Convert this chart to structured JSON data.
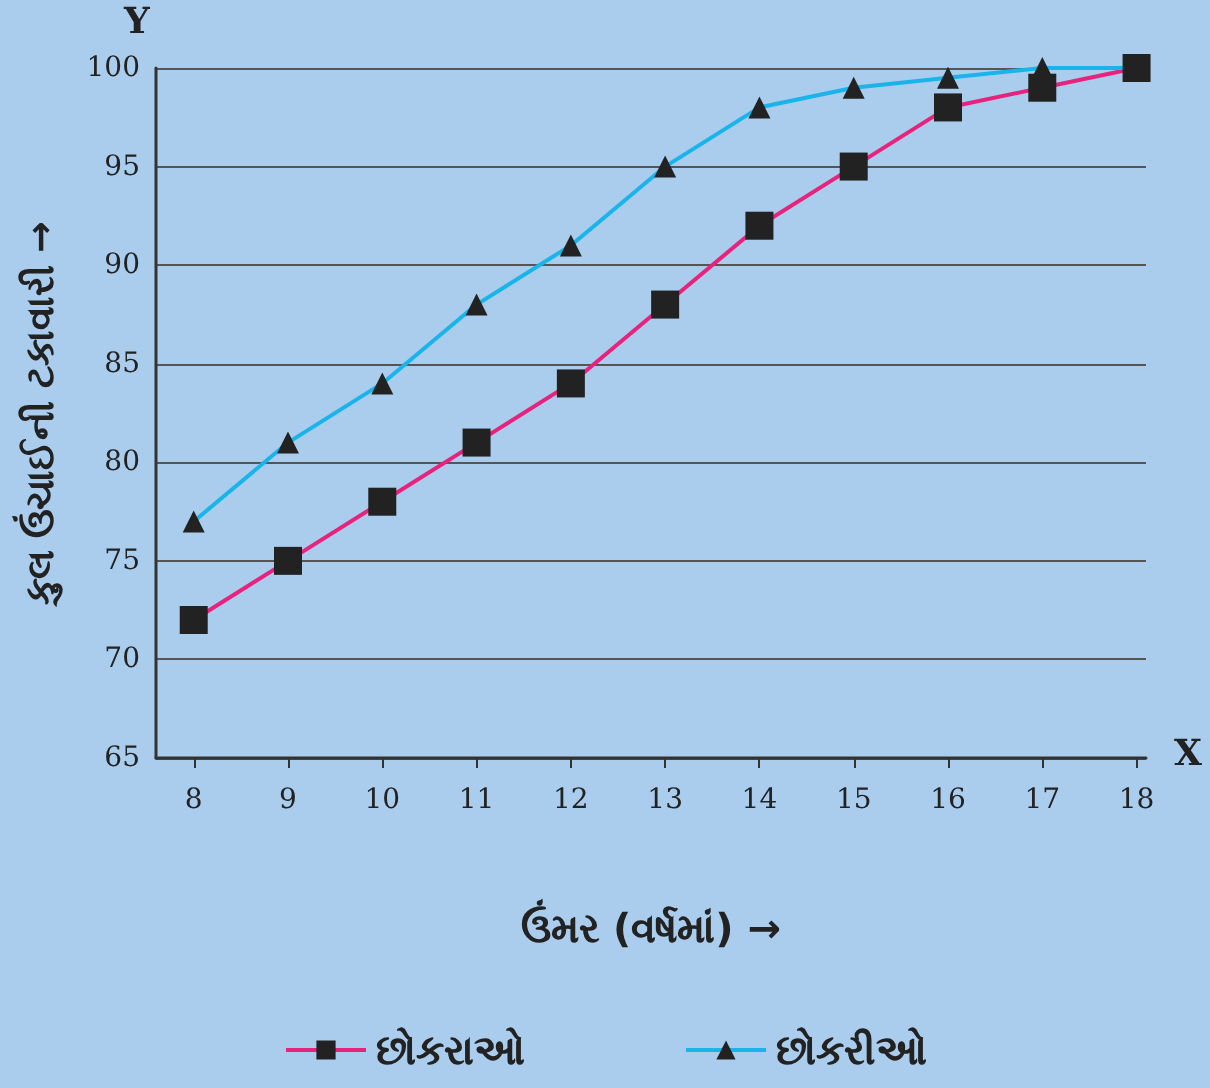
{
  "chart_data": {
    "type": "line",
    "xlabel": "ઉંમર (વર્ષમાં) →",
    "ylabel": "કુલ ઉંચાઈની ટકાવારી →",
    "annotations": [
      "Y",
      "X"
    ],
    "x": [
      8,
      9,
      10,
      11,
      12,
      13,
      14,
      15,
      16,
      17,
      18
    ],
    "series": [
      {
        "name": "છોકરાઓ",
        "color": "#e8237d",
        "marker": "square",
        "values": [
          72,
          75,
          78,
          81,
          84,
          88,
          92,
          95,
          98,
          99,
          100
        ]
      },
      {
        "name": "છોકરીઓ",
        "color": "#1ab4ea",
        "marker": "triangle",
        "values": [
          77,
          81,
          84,
          88,
          91,
          95,
          98,
          99,
          99.5,
          100,
          100
        ]
      }
    ],
    "xlim": [
      7.6,
      18.1
    ],
    "xticks": [
      8,
      9,
      10,
      11,
      12,
      13,
      14,
      15,
      16,
      17,
      18
    ],
    "ylim": [
      65,
      100
    ],
    "yticks": [
      65,
      70,
      75,
      80,
      85,
      90,
      95,
      100
    ],
    "grid": "y",
    "legend": "bottom",
    "line_style": "solid"
  }
}
